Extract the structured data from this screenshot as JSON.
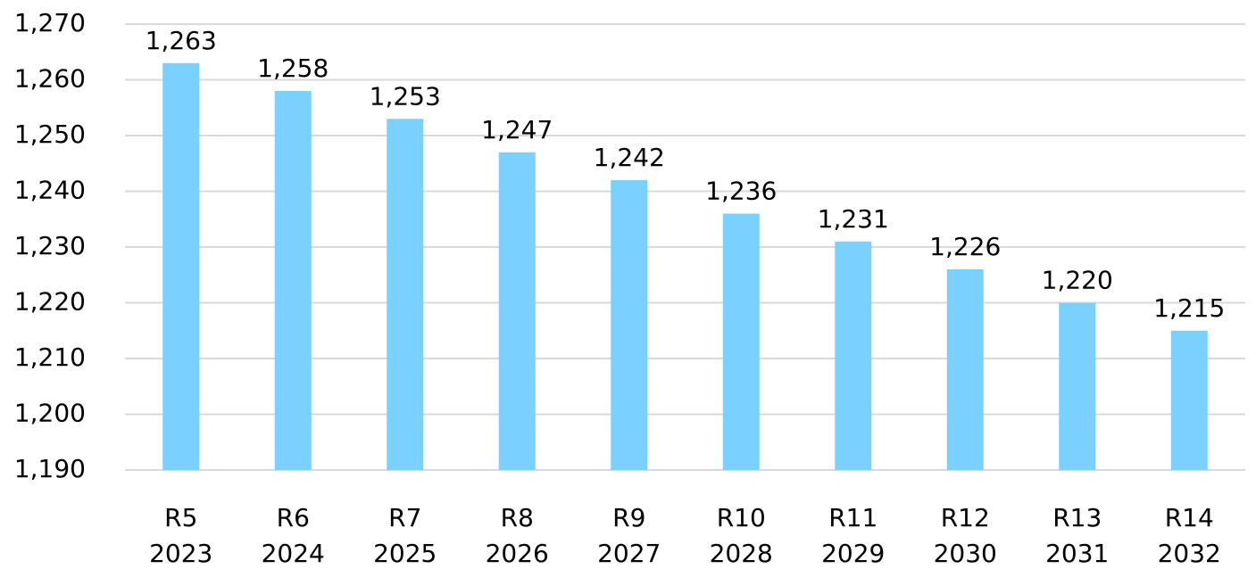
{
  "colors": {
    "bar": "#7ad0ff",
    "grid": "#d9d9d9",
    "text": "#000000",
    "background": "#ffffff"
  },
  "chart_data": {
    "type": "bar",
    "title": "",
    "xlabel": "",
    "ylabel": "",
    "categories": [
      [
        "R5",
        "2023"
      ],
      [
        "R6",
        "2024"
      ],
      [
        "R7",
        "2025"
      ],
      [
        "R8",
        "2026"
      ],
      [
        "R9",
        "2027"
      ],
      [
        "R10",
        "2028"
      ],
      [
        "R11",
        "2029"
      ],
      [
        "R12",
        "2030"
      ],
      [
        "R13",
        "2031"
      ],
      [
        "R14",
        "2032"
      ]
    ],
    "values": [
      1263,
      1258,
      1253,
      1247,
      1242,
      1236,
      1231,
      1226,
      1220,
      1215
    ],
    "value_labels": [
      "1,263",
      "1,258",
      "1,253",
      "1,247",
      "1,242",
      "1,236",
      "1,231",
      "1,226",
      "1,220",
      "1,215"
    ],
    "ylim": [
      1190,
      1270
    ],
    "yticks": [
      1190,
      1200,
      1210,
      1220,
      1230,
      1240,
      1250,
      1260,
      1270
    ],
    "ytick_labels": [
      "1,190",
      "1,200",
      "1,210",
      "1,220",
      "1,230",
      "1,240",
      "1,250",
      "1,260",
      "1,270"
    ],
    "grid": true,
    "legend": "none"
  }
}
